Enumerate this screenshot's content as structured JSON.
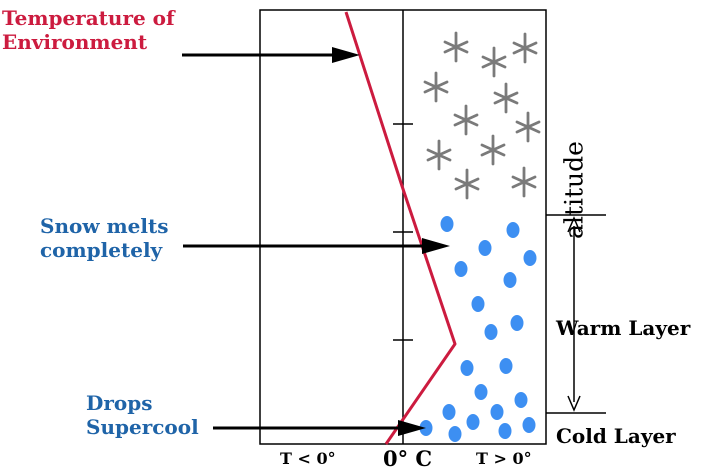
{
  "labels": {
    "temperature": [
      "Temperature of",
      "Environment"
    ],
    "snow_melts": [
      "Snow melts",
      "completely"
    ],
    "drops": [
      "Drops",
      "Supercool"
    ],
    "warm_layer": "Warm Layer",
    "cold_layer": "Cold Layer",
    "altitude": "altitude",
    "t_below": "T < 0°",
    "zero": "0° C",
    "t_above": "T > 0°"
  },
  "colors": {
    "temperature_line": "#cc1b3f",
    "label_red": "#cc1b3f",
    "label_blue": "#1f64a8",
    "raindrop": "#3d8ff2",
    "snowflake": "#7a7a7a"
  },
  "precipitation": {
    "snowflake_count": 13,
    "raindrop_count": 20
  }
}
